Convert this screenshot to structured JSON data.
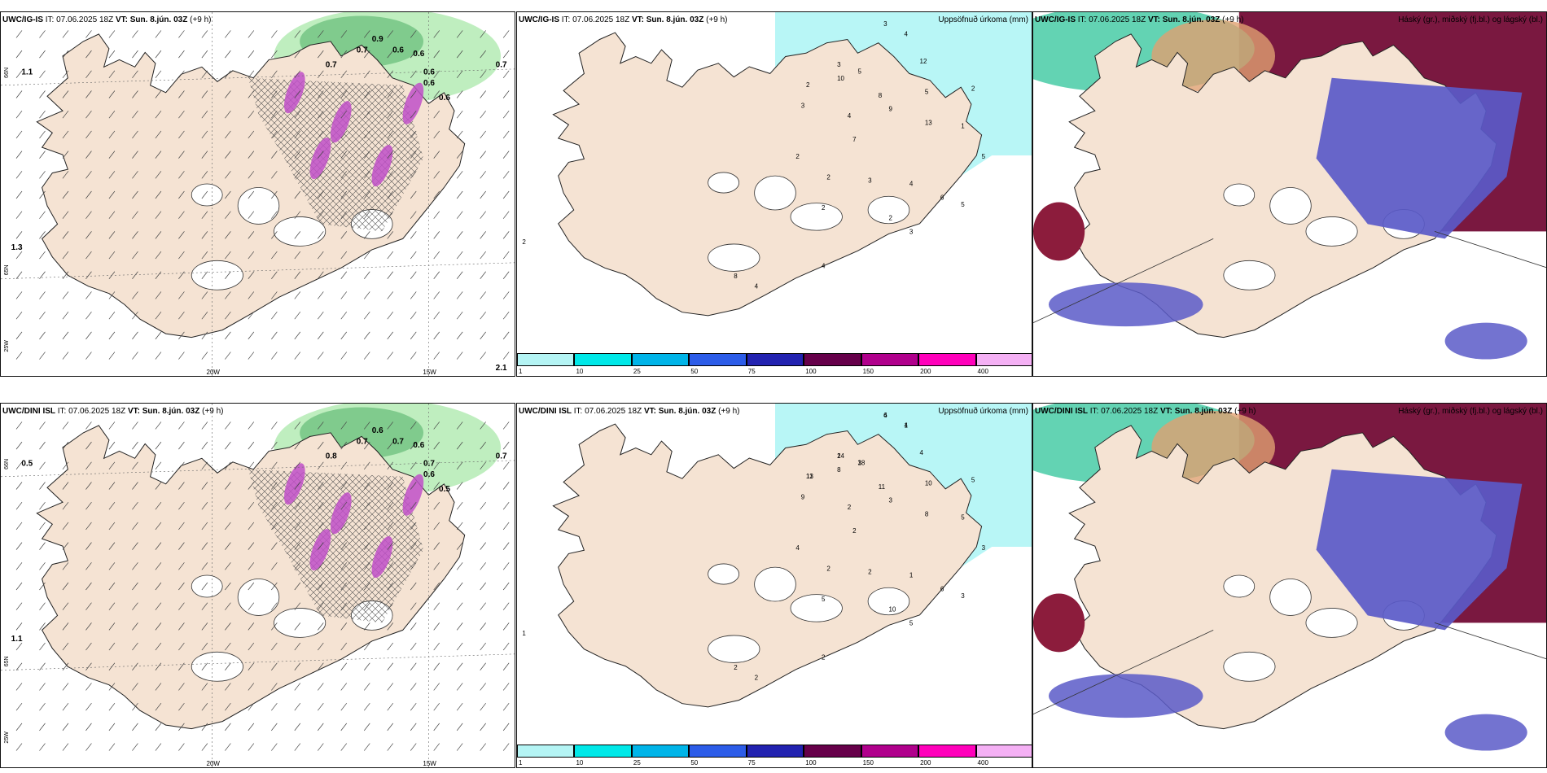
{
  "rows": [
    {
      "id": "ig",
      "wind": {
        "model": "UWC/IG-IS",
        "issue": "IT: 07.06.2025 18Z",
        "valid_label": "VT:",
        "valid": "Sun. 8.jún. 03Z",
        "lead": "(+9 h)",
        "right": ""
      },
      "precip": {
        "model": "UWC/IG-IS",
        "issue": "IT: 07.06.2025 18Z",
        "valid_label": "VT:",
        "valid": "Sun. 8.jún. 03Z",
        "lead": "(+9 h)",
        "right": "Uppsöfnuð úrkoma (mm)"
      },
      "cloud": {
        "model": "UWC/IG-IS",
        "issue": "IT: 07.06.2025 18Z",
        "valid_label": "VT:",
        "valid": "Sun. 8.jún. 03Z",
        "lead": "(+9 h)",
        "right": "Háský (gr.), miðský (fj.bl.) og lágský (bl.)"
      },
      "wind_values": [
        "0.9",
        "0.6",
        "0.7",
        "0.6",
        "0.7",
        "0.6",
        "0.6",
        "1.1",
        "1.3",
        "0.7",
        "0.6",
        "2.1"
      ],
      "precip_values": [
        "3",
        "4",
        "3",
        "2",
        "5",
        "10",
        "12",
        "5",
        "8",
        "2",
        "3",
        "9",
        "4",
        "13",
        "1",
        "5",
        "2",
        "7",
        "2",
        "3",
        "4",
        "2",
        "6",
        "5",
        "2",
        "3",
        "8",
        "4",
        "2",
        "4"
      ],
      "x_ticks": [
        "20W",
        "15W"
      ],
      "y_ticks": [
        "66N",
        "65N",
        "25W"
      ]
    },
    {
      "id": "dini",
      "wind": {
        "model": "UWC/DINI ISL",
        "issue": "IT: 07.06.2025 18Z",
        "valid_label": "VT:",
        "valid": "Sun. 8.jún. 03Z",
        "lead": "(+9 h)",
        "right": ""
      },
      "precip": {
        "model": "UWC/DINI ISL",
        "issue": "IT: 07.06.2025 18Z",
        "valid_label": "VT:",
        "valid": "Sun. 8.jún. 03Z",
        "lead": "(+9 h)",
        "right": "Uppsöfnuð úrkoma (mm)"
      },
      "cloud": {
        "model": "UWC/DINI ISL",
        "issue": "IT: 07.06.2025 18Z",
        "valid_label": "VT:",
        "valid": "Sun. 8.jún. 03Z",
        "lead": "(+9 h)",
        "right": "Háský (gr.), miðský (fj.bl.) og lágský (bl.)"
      },
      "wind_values": [
        "0.6",
        "0.7",
        "0.7",
        "0.6",
        "0.8",
        "0.7",
        "0.5",
        "0.5",
        "1.1",
        "0.7",
        "0.6"
      ],
      "precip_values": [
        "4",
        "4",
        "2",
        "13",
        "18",
        "8",
        "4",
        "10",
        "11",
        "5",
        "9",
        "3",
        "2",
        "8",
        "5",
        "3",
        "4",
        "2",
        "2",
        "2",
        "1",
        "5",
        "6",
        "3",
        "10",
        "5",
        "2",
        "2",
        "1",
        "2",
        "6",
        "1",
        "14",
        "11",
        "3"
      ],
      "x_ticks": [
        "20W",
        "15W"
      ],
      "y_ticks": [
        "66N",
        "65N",
        "25W"
      ]
    }
  ],
  "colorbar": {
    "ticks": [
      "1",
      "10",
      "25",
      "50",
      "75",
      "100",
      "150",
      "200",
      "400"
    ],
    "colors": [
      "#b4f4f4",
      "#00e8e8",
      "#00b4e8",
      "#2c5ce8",
      "#2222b0",
      "#66004a",
      "#b0008c",
      "#ff00bb",
      "#f4b0f4"
    ]
  },
  "colors": {
    "land": "#f5e3d3",
    "precip_light": "#b8f6f6",
    "green_light": "#b8ecb8",
    "green_dark": "#4cae64",
    "cloud_high": "#7a1840",
    "cloud_mid": "#5a5ac8",
    "cloud_low": "#3cc8a0"
  }
}
